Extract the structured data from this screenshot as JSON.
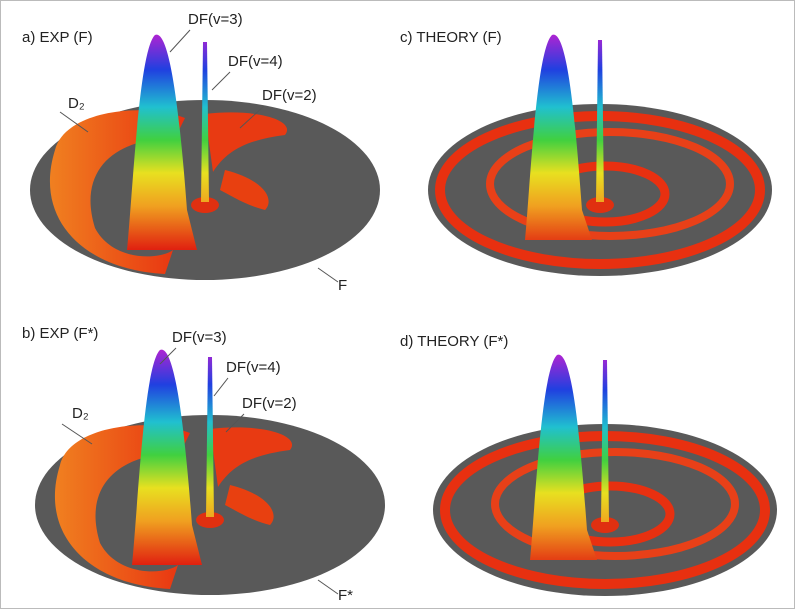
{
  "panels": [
    {
      "label": "a) EXP (F)",
      "annotations": [
        "DF(v=3)",
        "DF(v=4)",
        "DF(v=2)",
        "D₂",
        "F"
      ]
    },
    {
      "label": "c) THEORY (F)"
    },
    {
      "label": "b) EXP (F*)",
      "annotations": [
        "DF(v=3)",
        "DF(v=4)",
        "DF(v=2)",
        "D₂",
        "F*"
      ]
    },
    {
      "label": "d) THEORY (F*)"
    }
  ]
}
